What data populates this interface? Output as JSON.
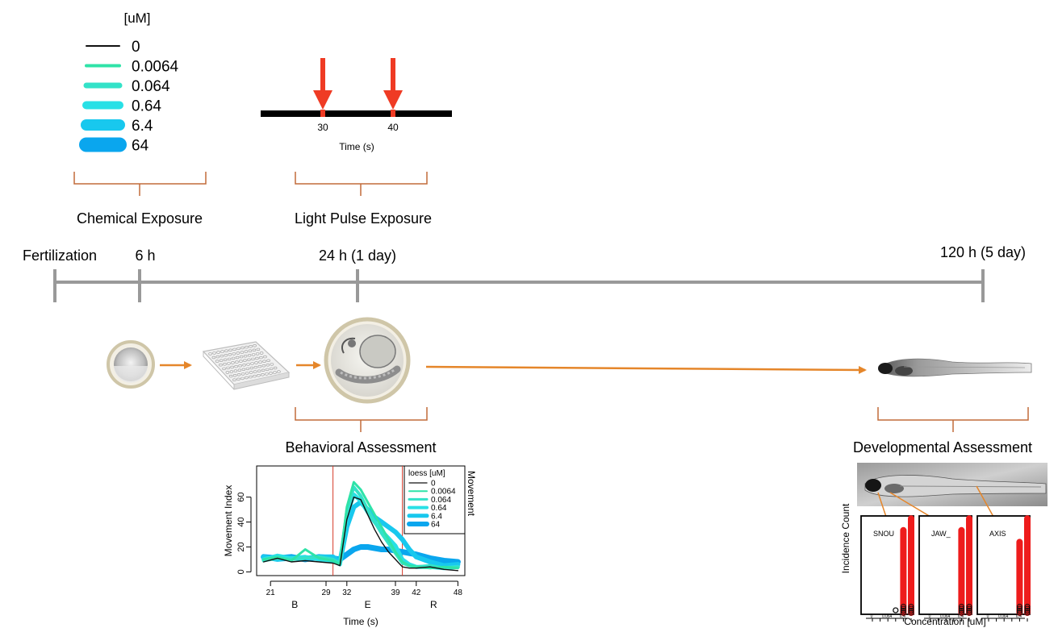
{
  "colors": {
    "concentrations": [
      "#111111",
      "#2fe3a8",
      "#33e2c8",
      "#28e0e6",
      "#18c8ee",
      "#0aa6ee"
    ],
    "timeline": "#999999",
    "arrow": "#e5862a",
    "brace": "#c26b3a",
    "pulse": "#ef3b24",
    "incidence": "#ee1c1c",
    "marker_line": "#d63a2a"
  },
  "legend": {
    "title": "[uM]",
    "items": [
      "0",
      "0.0064",
      "0.064",
      "0.64",
      "6.4",
      "64"
    ]
  },
  "light_pulse": {
    "ticks": [
      "30",
      "40"
    ],
    "xlabel": "Time (s)"
  },
  "labels": {
    "chemical_exposure": "Chemical Exposure",
    "light_pulse_exposure": "Light Pulse Exposure",
    "behavioral_assessment": "Behavioral Assessment",
    "developmental_assessment": "Developmental Assessment"
  },
  "timeline": {
    "points": [
      "Fertilization",
      "6 h",
      "24 h (1 day)",
      "120 h (5 day)"
    ]
  },
  "icons": {
    "egg": "zebrafish-egg-icon",
    "plate": "well-plate-icon",
    "embryo": "embryo-icon",
    "larva": "larva-icon",
    "larva_closeup": "larva-closeup-icon"
  },
  "chart_data": [
    {
      "type": "line",
      "title": "",
      "xlabel": "Time (s)",
      "ylabel": "Movement Index",
      "right_label": "Movement",
      "xlim": [
        19,
        49
      ],
      "ylim": [
        -3,
        85
      ],
      "x_ticks": [
        21,
        29,
        32,
        39,
        42,
        48
      ],
      "y_ticks": [
        0,
        20,
        40,
        60
      ],
      "phases": [
        "B",
        "E",
        "R"
      ],
      "vlines": [
        30,
        40
      ],
      "legend_title": "loess [uM]",
      "x": [
        20,
        22,
        24,
        26,
        28,
        30,
        31,
        32,
        33,
        34,
        35,
        36,
        37,
        38,
        39,
        40,
        41,
        42,
        44,
        46,
        48
      ],
      "series": [
        {
          "name": "0",
          "values": [
            8,
            11,
            8,
            9,
            8,
            7,
            5,
            42,
            60,
            58,
            46,
            34,
            24,
            16,
            10,
            4,
            3,
            3,
            4,
            2,
            1
          ]
        },
        {
          "name": "0.0064",
          "values": [
            10,
            12,
            9,
            18,
            11,
            9,
            6,
            52,
            72,
            66,
            56,
            46,
            36,
            26,
            16,
            8,
            5,
            4,
            3,
            4,
            3
          ]
        },
        {
          "name": "0.064",
          "values": [
            9,
            11,
            10,
            11,
            12,
            10,
            7,
            49,
            68,
            61,
            50,
            40,
            31,
            23,
            15,
            7,
            5,
            4,
            5,
            3,
            4
          ]
        },
        {
          "name": "0.64",
          "values": [
            10,
            13,
            11,
            12,
            10,
            9,
            6,
            45,
            62,
            57,
            48,
            40,
            33,
            27,
            21,
            10,
            6,
            4,
            4,
            3,
            4
          ]
        },
        {
          "name": "6.4",
          "values": [
            12,
            10,
            11,
            11,
            12,
            12,
            8,
            36,
            52,
            56,
            50,
            44,
            40,
            36,
            32,
            26,
            18,
            12,
            8,
            5,
            6
          ]
        },
        {
          "name": "64",
          "values": [
            12,
            11,
            12,
            10,
            12,
            11,
            10,
            14,
            18,
            20,
            20,
            19,
            18,
            18,
            17,
            16,
            15,
            14,
            11,
            9,
            8
          ]
        }
      ]
    },
    {
      "type": "scatter",
      "title": "",
      "xlabel": "Concentration [uM]",
      "ylabel": "Incidence Count",
      "x_tick_labels": [
        "0",
        "0.064",
        "6.4"
      ],
      "panels": [
        {
          "name": "SNOU",
          "values": [
            0,
            0,
            0,
            1,
            0,
            0
          ],
          "highlight": [
            0,
            0,
            0,
            0,
            14,
            16
          ]
        },
        {
          "name": "JAW_",
          "values": [
            0,
            0,
            0,
            0,
            0,
            0
          ],
          "highlight": [
            0,
            0,
            0,
            0,
            14,
            16
          ]
        },
        {
          "name": "AXIS",
          "values": [
            0,
            0,
            0,
            0,
            1,
            1
          ],
          "highlight": [
            0,
            0,
            0,
            0,
            12,
            16
          ]
        }
      ]
    }
  ]
}
